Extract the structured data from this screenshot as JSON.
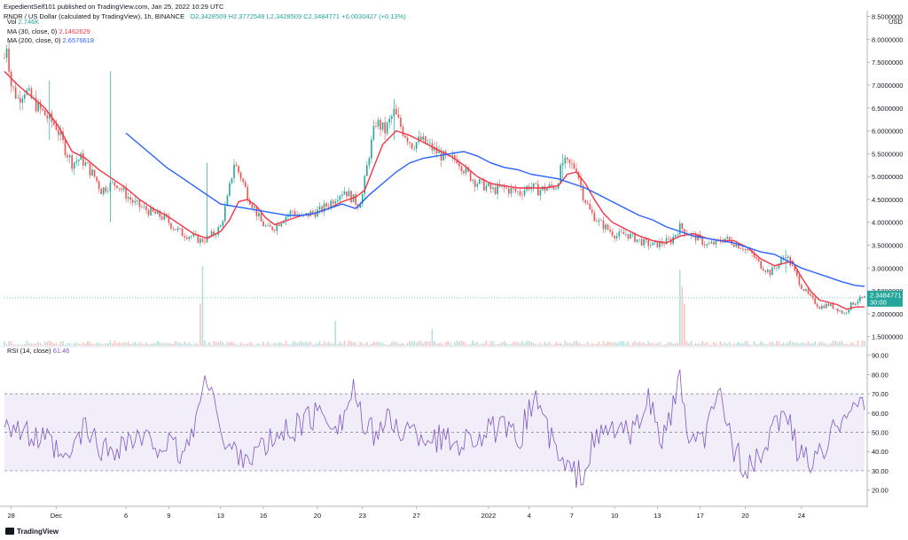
{
  "header": {
    "publisher": "ExpedientSelf101 published on TradingView.com, Jan 25, 2022 10:29 UTC",
    "symbol": "RNDR / US Dollar (calculated by TradingView), 1h, BINANCE",
    "ohlc": "O2.3428509 H2.3772548 L2.3428509 C2.3484771 +0.0030427 (+0.13%)"
  },
  "legend": {
    "vol_label": "Vol",
    "vol_value": "2.746K",
    "ma30_label": "MA (30, close, 0)",
    "ma30_value": "2.1462629",
    "ma200_label": "MA (200, close, 0)",
    "ma200_value": "2.6576618"
  },
  "rsi_legend": {
    "label": "RSI (14, close)",
    "value": "61.46"
  },
  "price_axis": {
    "currency": "USD",
    "ticks": [
      "8.5000000",
      "8.0000000",
      "7.5000000",
      "7.0000000",
      "6.5000000",
      "6.0000000",
      "5.5000000",
      "5.0000000",
      "4.5000000",
      "4.0000000",
      "3.5000000",
      "3.0000000",
      "2.5000000",
      "2.0000000",
      "1.5000000"
    ]
  },
  "price_label": {
    "value": "2.3484771",
    "countdown": "30:00"
  },
  "rsi_axis": {
    "ticks": [
      "90.00",
      "80.00",
      "70.00",
      "60.00",
      "50.00",
      "40.00",
      "30.00",
      "20.00"
    ]
  },
  "x_axis": {
    "ticks": [
      "28",
      "Dec",
      "6",
      "9",
      "13",
      "16",
      "20",
      "23",
      "27",
      "2022",
      "4",
      "7",
      "10",
      "13",
      "17",
      "20",
      "24"
    ]
  },
  "colors": {
    "up": "#26a69a",
    "down": "#ef5350",
    "ma30": "#f23645",
    "ma200": "#2962ff",
    "rsi": "#7e57c2",
    "rsi_band": "#7e57c2"
  },
  "footer": {
    "brand": "TradingView"
  },
  "chart_data": {
    "type": "candlestick",
    "pair": "RNDR / USD",
    "interval": "1h",
    "ylim": [
      1.3,
      8.55
    ],
    "rsi_ylim": [
      12,
      94
    ],
    "rsi_bands": [
      30,
      70
    ],
    "price_path": [
      [
        0,
        7.6
      ],
      [
        1,
        7.9
      ],
      [
        3,
        7.0
      ],
      [
        6,
        6.7
      ],
      [
        9,
        6.9
      ],
      [
        12,
        6.7
      ],
      [
        15,
        6.5
      ],
      [
        19,
        6.3
      ],
      [
        23,
        6.1
      ],
      [
        27,
        5.6
      ],
      [
        30,
        5.3
      ],
      [
        34,
        5.4
      ],
      [
        37,
        5.2
      ],
      [
        40,
        5.0
      ],
      [
        43,
        4.7
      ],
      [
        46,
        4.8
      ],
      [
        50,
        4.85
      ],
      [
        54,
        4.6
      ],
      [
        58,
        4.4
      ],
      [
        62,
        4.3
      ],
      [
        66,
        4.2
      ],
      [
        71,
        4.1
      ],
      [
        75,
        3.9
      ],
      [
        79,
        3.75
      ],
      [
        83,
        3.7
      ],
      [
        87,
        3.6
      ],
      [
        90,
        3.65
      ],
      [
        93,
        3.75
      ],
      [
        96,
        3.9
      ],
      [
        99,
        4.5
      ],
      [
        102,
        5.3
      ],
      [
        105,
        5.0
      ],
      [
        108,
        4.6
      ],
      [
        111,
        4.3
      ],
      [
        114,
        4.0
      ],
      [
        117,
        3.85
      ],
      [
        120,
        3.9
      ],
      [
        124,
        4.1
      ],
      [
        128,
        4.25
      ],
      [
        132,
        4.1
      ],
      [
        136,
        4.2
      ],
      [
        140,
        4.25
      ],
      [
        144,
        4.4
      ],
      [
        148,
        4.6
      ],
      [
        151,
        4.7
      ],
      [
        154,
        4.55
      ],
      [
        157,
        4.4
      ],
      [
        159,
        4.6
      ],
      [
        162,
        5.5
      ],
      [
        165,
        6.2
      ],
      [
        169,
        6.0
      ],
      [
        173,
        6.4
      ],
      [
        177,
        6.0
      ],
      [
        181,
        5.7
      ],
      [
        185,
        5.8
      ],
      [
        189,
        5.65
      ],
      [
        193,
        5.5
      ],
      [
        197,
        5.35
      ],
      [
        201,
        5.4
      ],
      [
        205,
        5.1
      ],
      [
        209,
        4.9
      ],
      [
        213,
        4.8
      ],
      [
        217,
        4.7
      ],
      [
        221,
        4.75
      ],
      [
        225,
        4.7
      ],
      [
        229,
        4.65
      ],
      [
        233,
        4.8
      ],
      [
        237,
        4.7
      ],
      [
        241,
        4.75
      ],
      [
        245,
        4.8
      ],
      [
        248,
        5.3
      ],
      [
        251,
        5.25
      ],
      [
        254,
        5.2
      ],
      [
        257,
        4.6
      ],
      [
        260,
        4.25
      ],
      [
        264,
        4.0
      ],
      [
        268,
        3.85
      ],
      [
        272,
        3.7
      ],
      [
        276,
        3.75
      ],
      [
        280,
        3.65
      ],
      [
        284,
        3.55
      ],
      [
        288,
        3.5
      ],
      [
        292,
        3.55
      ],
      [
        296,
        3.6
      ],
      [
        300,
        3.9
      ],
      [
        304,
        3.75
      ],
      [
        308,
        3.65
      ],
      [
        312,
        3.5
      ],
      [
        316,
        3.55
      ],
      [
        320,
        3.65
      ],
      [
        324,
        3.55
      ],
      [
        328,
        3.45
      ],
      [
        332,
        3.3
      ],
      [
        336,
        3.05
      ],
      [
        340,
        2.9
      ],
      [
        344,
        3.1
      ],
      [
        347,
        3.3
      ],
      [
        350,
        3.0
      ],
      [
        354,
        2.6
      ],
      [
        358,
        2.35
      ],
      [
        362,
        2.15
      ],
      [
        366,
        2.2
      ],
      [
        370,
        2.1
      ],
      [
        373,
        2.0
      ],
      [
        376,
        2.2
      ],
      [
        379,
        2.3
      ],
      [
        382,
        2.35
      ]
    ],
    "ma30_path": [
      [
        0,
        7.3
      ],
      [
        6,
        7.0
      ],
      [
        12,
        6.75
      ],
      [
        18,
        6.5
      ],
      [
        24,
        6.1
      ],
      [
        30,
        5.55
      ],
      [
        36,
        5.4
      ],
      [
        42,
        5.15
      ],
      [
        48,
        4.95
      ],
      [
        54,
        4.75
      ],
      [
        60,
        4.5
      ],
      [
        66,
        4.3
      ],
      [
        72,
        4.15
      ],
      [
        78,
        3.95
      ],
      [
        84,
        3.75
      ],
      [
        90,
        3.65
      ],
      [
        96,
        3.8
      ],
      [
        100,
        4.05
      ],
      [
        104,
        4.45
      ],
      [
        108,
        4.5
      ],
      [
        112,
        4.35
      ],
      [
        116,
        4.1
      ],
      [
        120,
        3.95
      ],
      [
        126,
        4.05
      ],
      [
        132,
        4.15
      ],
      [
        138,
        4.2
      ],
      [
        144,
        4.3
      ],
      [
        150,
        4.45
      ],
      [
        156,
        4.55
      ],
      [
        160,
        4.7
      ],
      [
        164,
        5.2
      ],
      [
        168,
        5.7
      ],
      [
        174,
        6.0
      ],
      [
        180,
        5.9
      ],
      [
        186,
        5.75
      ],
      [
        192,
        5.6
      ],
      [
        198,
        5.45
      ],
      [
        204,
        5.25
      ],
      [
        210,
        5.0
      ],
      [
        216,
        4.85
      ],
      [
        222,
        4.8
      ],
      [
        228,
        4.75
      ],
      [
        234,
        4.75
      ],
      [
        240,
        4.75
      ],
      [
        246,
        4.8
      ],
      [
        250,
        5.05
      ],
      [
        254,
        5.1
      ],
      [
        258,
        4.85
      ],
      [
        262,
        4.5
      ],
      [
        266,
        4.2
      ],
      [
        270,
        4.0
      ],
      [
        276,
        3.85
      ],
      [
        282,
        3.7
      ],
      [
        288,
        3.6
      ],
      [
        294,
        3.55
      ],
      [
        300,
        3.7
      ],
      [
        306,
        3.75
      ],
      [
        312,
        3.65
      ],
      [
        318,
        3.6
      ],
      [
        324,
        3.6
      ],
      [
        330,
        3.45
      ],
      [
        336,
        3.2
      ],
      [
        342,
        3.05
      ],
      [
        346,
        3.1
      ],
      [
        350,
        3.15
      ],
      [
        354,
        2.8
      ],
      [
        358,
        2.5
      ],
      [
        362,
        2.3
      ],
      [
        366,
        2.25
      ],
      [
        370,
        2.2
      ],
      [
        374,
        2.1
      ],
      [
        378,
        2.15
      ],
      [
        382,
        2.15
      ]
    ],
    "ma200_path": [
      [
        54,
        5.95
      ],
      [
        60,
        5.7
      ],
      [
        66,
        5.45
      ],
      [
        72,
        5.2
      ],
      [
        78,
        5.0
      ],
      [
        84,
        4.8
      ],
      [
        90,
        4.6
      ],
      [
        96,
        4.4
      ],
      [
        102,
        4.35
      ],
      [
        108,
        4.3
      ],
      [
        114,
        4.25
      ],
      [
        120,
        4.2
      ],
      [
        126,
        4.15
      ],
      [
        132,
        4.15
      ],
      [
        138,
        4.2
      ],
      [
        144,
        4.3
      ],
      [
        150,
        4.4
      ],
      [
        156,
        4.3
      ],
      [
        162,
        4.6
      ],
      [
        168,
        4.85
      ],
      [
        174,
        5.1
      ],
      [
        180,
        5.3
      ],
      [
        186,
        5.4
      ],
      [
        192,
        5.45
      ],
      [
        198,
        5.5
      ],
      [
        204,
        5.55
      ],
      [
        210,
        5.45
      ],
      [
        216,
        5.3
      ],
      [
        222,
        5.2
      ],
      [
        228,
        5.15
      ],
      [
        234,
        5.05
      ],
      [
        240,
        5.0
      ],
      [
        246,
        4.95
      ],
      [
        252,
        4.85
      ],
      [
        258,
        4.75
      ],
      [
        264,
        4.6
      ],
      [
        270,
        4.45
      ],
      [
        276,
        4.3
      ],
      [
        282,
        4.15
      ],
      [
        288,
        4.05
      ],
      [
        294,
        3.9
      ],
      [
        300,
        3.8
      ],
      [
        306,
        3.7
      ],
      [
        312,
        3.65
      ],
      [
        318,
        3.6
      ],
      [
        324,
        3.55
      ],
      [
        330,
        3.45
      ],
      [
        336,
        3.35
      ],
      [
        342,
        3.3
      ],
      [
        348,
        3.15
      ],
      [
        354,
        3.0
      ],
      [
        360,
        2.9
      ],
      [
        366,
        2.8
      ],
      [
        372,
        2.7
      ],
      [
        378,
        2.62
      ],
      [
        382,
        2.6
      ]
    ],
    "rsi_anchors": [
      [
        0,
        58
      ],
      [
        10,
        48
      ],
      [
        20,
        44
      ],
      [
        27,
        33
      ],
      [
        35,
        52
      ],
      [
        45,
        40
      ],
      [
        55,
        46
      ],
      [
        70,
        44
      ],
      [
        80,
        38
      ],
      [
        88,
        70
      ],
      [
        92,
        80
      ],
      [
        97,
        42
      ],
      [
        110,
        38
      ],
      [
        125,
        50
      ],
      [
        140,
        60
      ],
      [
        150,
        55
      ],
      [
        155,
        74
      ],
      [
        160,
        48
      ],
      [
        170,
        55
      ],
      [
        180,
        50
      ],
      [
        200,
        45
      ],
      [
        210,
        48
      ],
      [
        220,
        52
      ],
      [
        228,
        45
      ],
      [
        236,
        70
      ],
      [
        242,
        48
      ],
      [
        248,
        32
      ],
      [
        256,
        27
      ],
      [
        262,
        45
      ],
      [
        270,
        52
      ],
      [
        280,
        48
      ],
      [
        285,
        70
      ],
      [
        292,
        45
      ],
      [
        300,
        75
      ],
      [
        305,
        40
      ],
      [
        312,
        50
      ],
      [
        318,
        70
      ],
      [
        325,
        38
      ],
      [
        332,
        30
      ],
      [
        340,
        45
      ],
      [
        346,
        65
      ],
      [
        352,
        40
      ],
      [
        358,
        35
      ],
      [
        364,
        38
      ],
      [
        370,
        56
      ],
      [
        375,
        66
      ],
      [
        382,
        62
      ]
    ],
    "volume_spikes": [
      [
        88,
        0.95
      ],
      [
        87,
        0.5
      ],
      [
        147,
        0.3
      ],
      [
        190,
        0.2
      ],
      [
        300,
        0.9
      ],
      [
        301,
        0.7
      ],
      [
        302,
        0.5
      ]
    ]
  }
}
